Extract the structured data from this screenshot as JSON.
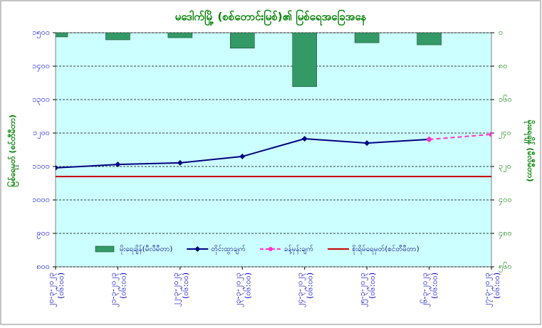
{
  "chart_data": {
    "type": "combo",
    "title": "မဒေါက်မြို့ (စစ်တောင်းမြစ်)၏ မြစ်ရေအခြေအနေ",
    "ylabel": "မြစ်ရေမှတ် (စင်တီမီတာ)",
    "y2label": "မိုးရေချိန် (မီလီမီတာ)",
    "categories": [
      "၂၀-၃-၂၀၂၃",
      "၂၁-၃-၂၀၂၃",
      "၂၂-၃-၂၀၂၃",
      "၂၃-၃-၂၀၂၃",
      "၂၄-၃-၂၀၂၃",
      "၂၅-၃-၂၀၂၃",
      "၂၆-၃-၂၀၂၃",
      "၂၇-၃-၂၀၂၃"
    ],
    "time_labels": [
      "(၀၆:၀၀)",
      "(၀၆:၀၀)",
      "(၀၆:၀၀)",
      "(၀၆:၀၀)",
      "(၀၆:၀၀)",
      "(၀၆:၀၀)",
      "(၀၆:၀၀)",
      "(၀၆:၀၀)"
    ],
    "ylim": [
      800,
      1500
    ],
    "yticks": [
      {
        "value": 800,
        "label": "၈၀၀"
      },
      {
        "value": 900,
        "label": "၉၀၀"
      },
      {
        "value": 1000,
        "label": "၁၀၀၀"
      },
      {
        "value": 1100,
        "label": "၁၁၀၀"
      },
      {
        "value": 1200,
        "label": "၁၂၀၀"
      },
      {
        "value": 1300,
        "label": "၁၃၀၀"
      },
      {
        "value": 1400,
        "label": "၁၄၀၀"
      },
      {
        "value": 1500,
        "label": "၁၅၀၀"
      }
    ],
    "y2lim": [
      560,
      0
    ],
    "y2ticks": [
      {
        "value": 0,
        "label": "၀"
      },
      {
        "value": 80,
        "label": "၈၀"
      },
      {
        "value": 160,
        "label": "၁၆၀"
      },
      {
        "value": 240,
        "label": "၂၄၀"
      },
      {
        "value": 320,
        "label": "၃၂၀"
      },
      {
        "value": 400,
        "label": "၄၀၀"
      },
      {
        "value": 480,
        "label": "၄၈၀"
      },
      {
        "value": 560,
        "label": "၅၆၀"
      }
    ],
    "grid": true,
    "series": [
      {
        "name": "မိုးရေချိန်(မီလီမီတာ)",
        "kind": "bar",
        "axis": "y2",
        "color": "#339966",
        "values": [
          10,
          17,
          12,
          37,
          129,
          24,
          29,
          null
        ]
      },
      {
        "name": "တိုင်းထွာချက်",
        "kind": "line",
        "color": "#000080",
        "marker": "diamond",
        "values": [
          1096,
          1106,
          1111,
          1130,
          1183,
          1170,
          1181,
          null
        ]
      },
      {
        "name": "ခန့်မှန်းချက်",
        "kind": "line",
        "dashed": true,
        "color": "#ff33cc",
        "marker": "circle",
        "values": [
          null,
          null,
          null,
          null,
          null,
          null,
          1181,
          1196
        ]
      }
    ],
    "reference_lines": [
      {
        "name": "စိုးရိမ်ရေမှတ်(စင်တီမီတာ)",
        "value": 1070,
        "color": "#cc0000"
      }
    ]
  }
}
